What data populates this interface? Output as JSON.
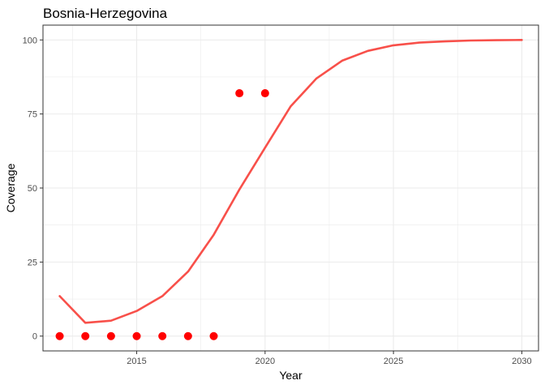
{
  "chart_data": {
    "type": "line",
    "title": "Bosnia-Herzegovina",
    "xlabel": "Year",
    "ylabel": "Coverage",
    "xlim": [
      2011.35,
      2030.65
    ],
    "ylim": [
      -5,
      105
    ],
    "x_ticks": [
      2015,
      2020,
      2025,
      2030
    ],
    "x_minor": [
      2012.5,
      2017.5,
      2022.5,
      2027.5
    ],
    "y_ticks": [
      0,
      25,
      50,
      75,
      100
    ],
    "y_minor": [
      12.5,
      37.5,
      62.5,
      87.5
    ],
    "grid": true,
    "legend": "none",
    "colors": {
      "line": "#f8504a",
      "points": "#ff0000",
      "grid": "#ebebeb",
      "panel_border": "#333333"
    },
    "series": [
      {
        "kind": "line",
        "x": [
          2012,
          2013,
          2014,
          2015,
          2016,
          2017,
          2018,
          2019,
          2020,
          2021,
          2022,
          2023,
          2024,
          2025,
          2026,
          2027,
          2028,
          2029,
          2030
        ],
        "y": [
          13.5,
          4.5,
          5.2,
          8.5,
          13.5,
          21.8,
          34.2,
          49.5,
          63.6,
          77.6,
          87.0,
          93.0,
          96.3,
          98.2,
          99.1,
          99.5,
          99.8,
          99.9,
          100.0
        ]
      },
      {
        "kind": "scatter",
        "x": [
          2012,
          2013,
          2014,
          2015,
          2016,
          2017,
          2018,
          2019,
          2020
        ],
        "y": [
          0,
          0,
          0,
          0,
          0,
          0,
          0,
          82,
          82
        ]
      }
    ]
  }
}
